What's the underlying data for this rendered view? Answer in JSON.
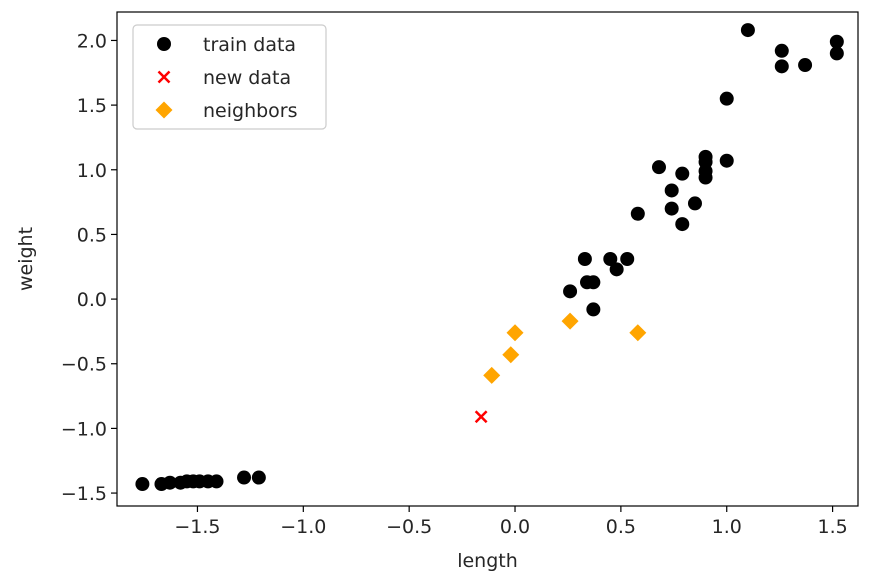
{
  "chart_data": {
    "type": "scatter",
    "title": "",
    "xlabel": "length",
    "ylabel": "weight",
    "xlim": [
      -1.88,
      1.62
    ],
    "ylim": [
      -1.6,
      2.22
    ],
    "xticks": [
      -1.5,
      -1.0,
      -0.5,
      0.0,
      0.5,
      1.0,
      1.5
    ],
    "xtick_labels": [
      "−1.5",
      "−1.0",
      "−0.5",
      "0.0",
      "0.5",
      "1.0",
      "1.5"
    ],
    "yticks": [
      -1.5,
      -1.0,
      -0.5,
      0.0,
      0.5,
      1.0,
      1.5,
      2.0
    ],
    "ytick_labels": [
      "−1.5",
      "−1.0",
      "−0.5",
      "0.0",
      "0.5",
      "1.0",
      "1.5",
      "2.0"
    ],
    "grid": false,
    "legend": "top-left",
    "series": [
      {
        "name": "train data",
        "marker": "circle",
        "color": "#000000",
        "points": [
          [
            -1.76,
            -1.43
          ],
          [
            -1.67,
            -1.43
          ],
          [
            -1.63,
            -1.42
          ],
          [
            -1.58,
            -1.42
          ],
          [
            -1.55,
            -1.41
          ],
          [
            -1.52,
            -1.41
          ],
          [
            -1.49,
            -1.41
          ],
          [
            -1.45,
            -1.41
          ],
          [
            -1.41,
            -1.41
          ],
          [
            -1.28,
            -1.38
          ],
          [
            -1.21,
            -1.38
          ],
          [
            0.26,
            0.06
          ],
          [
            0.33,
            0.31
          ],
          [
            0.34,
            0.13
          ],
          [
            0.37,
            0.13
          ],
          [
            0.37,
            -0.08
          ],
          [
            0.45,
            0.31
          ],
          [
            0.48,
            0.23
          ],
          [
            0.53,
            0.31
          ],
          [
            0.58,
            0.66
          ],
          [
            0.68,
            1.02
          ],
          [
            0.74,
            0.84
          ],
          [
            0.74,
            0.7
          ],
          [
            0.79,
            0.97
          ],
          [
            0.79,
            0.58
          ],
          [
            0.85,
            0.74
          ],
          [
            0.9,
            1.1
          ],
          [
            0.9,
            1.06
          ],
          [
            0.9,
            0.99
          ],
          [
            0.9,
            0.94
          ],
          [
            1.0,
            1.07
          ],
          [
            1.0,
            1.55
          ],
          [
            1.1,
            2.08
          ],
          [
            1.26,
            1.92
          ],
          [
            1.26,
            1.8
          ],
          [
            1.37,
            1.81
          ],
          [
            1.52,
            1.99
          ],
          [
            1.52,
            1.9
          ]
        ]
      },
      {
        "name": "new data",
        "marker": "x",
        "color": "#ff0000",
        "points": [
          [
            -0.16,
            -0.91
          ]
        ]
      },
      {
        "name": "neighbors",
        "marker": "diamond",
        "color": "#ffa500",
        "points": [
          [
            -0.11,
            -0.59
          ],
          [
            -0.02,
            -0.43
          ],
          [
            0.0,
            -0.26
          ],
          [
            0.26,
            -0.17
          ],
          [
            0.58,
            -0.26
          ]
        ]
      }
    ]
  }
}
